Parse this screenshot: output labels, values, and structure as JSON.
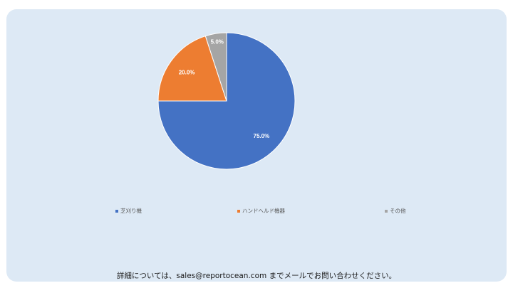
{
  "chart_data": {
    "type": "pie",
    "title": "",
    "categories": [
      "芝刈り機",
      "ハンドヘルド機器",
      "その他"
    ],
    "values": [
      75.0,
      20.0,
      5.0
    ],
    "data_labels": [
      "75.0%",
      "20.0%",
      "5.0%"
    ],
    "colors": [
      "#4472c4",
      "#ed7d31",
      "#a5a5a5"
    ],
    "start_angle": "12 o'clock",
    "direction": "clockwise",
    "legend_position": "bottom"
  },
  "footer": {
    "text": "詳細については、sales@reportocean.com までメールでお問い合わせください。"
  }
}
